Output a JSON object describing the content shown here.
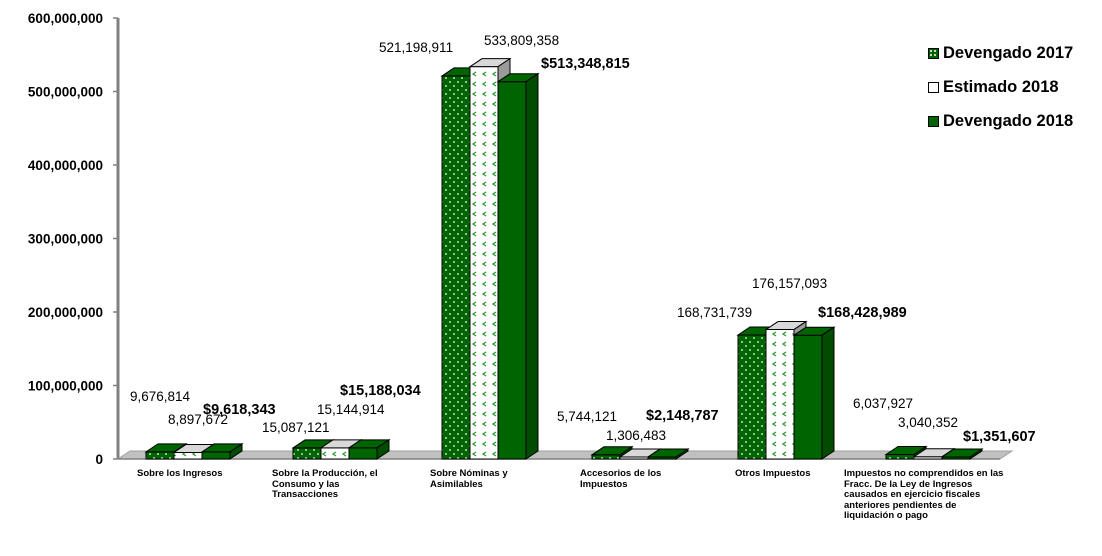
{
  "chart_data": {
    "type": "bar",
    "categories": [
      "Sobre los Ingresos",
      "Sobre la Producción, el Consumo y las Transacciones",
      "Sobre Nóminas y Asimilables",
      "Accesorios de los Impuestos",
      "Otros Impuestos",
      "Impuestos no comprendidos en las Fracc. De la Ley de Ingresos causados en ejercicio fiscales anteriores pendientes de liquidación o pago"
    ],
    "series": [
      {
        "name": "Devengado 2017",
        "values": [
          9676814,
          15087121,
          521198911,
          5744121,
          168731739,
          6037927
        ],
        "labels": [
          "9,676,814",
          "15,087,121",
          "521,198,911",
          "5,744,121",
          "168,731,739",
          "6,037,927"
        ]
      },
      {
        "name": "Estimado 2018",
        "values": [
          8897672,
          15144914,
          533809358,
          1306483,
          176157093,
          3040352
        ],
        "labels": [
          "8,897,672",
          "15,144,914",
          "533,809,358",
          "1,306,483",
          "176,157,093",
          "3,040,352"
        ]
      },
      {
        "name": "Devengado 2018",
        "values": [
          9618343,
          15188034,
          513348815,
          2148787,
          168428989,
          1351607
        ],
        "labels": [
          "$9,618,343",
          "$15,188,034",
          "$513,348,815",
          "$2,148,787",
          "$168,428,989",
          "$1,351,607"
        ]
      }
    ],
    "yticks": [
      "0",
      "100,000,000",
      "200,000,000",
      "300,000,000",
      "400,000,000",
      "500,000,000",
      "600,000,000"
    ],
    "ylim": [
      0,
      600000000
    ],
    "legend_position": "top-right",
    "colors": {
      "dark_green": "#006400",
      "light_green": "#33a033",
      "white": "#ffffff",
      "floor": "#c0c0c0",
      "axis": "#808080"
    }
  }
}
